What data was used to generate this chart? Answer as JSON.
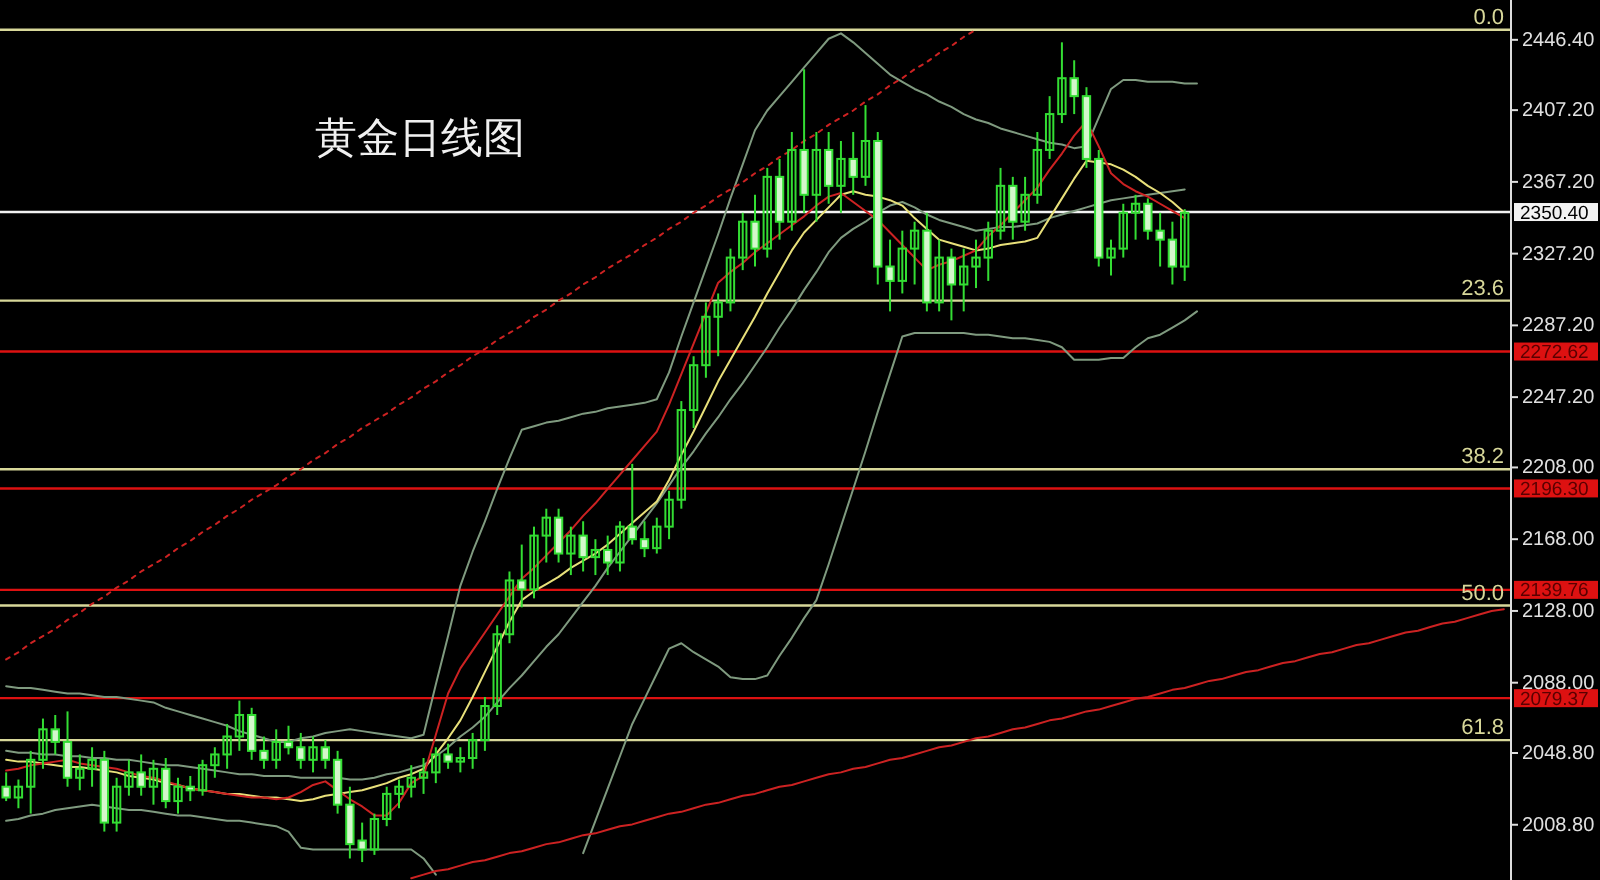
{
  "chart_data": {
    "type": "candlestick",
    "title": "黄金日线图",
    "ylim": [
      1978,
      2468.6
    ],
    "tick_labels": "y",
    "grid": false,
    "categories": [
      null,
      null,
      null,
      null,
      null,
      null,
      null,
      null,
      null,
      null,
      null,
      null,
      null,
      null,
      null,
      null,
      null,
      null,
      null,
      null,
      null,
      null,
      null,
      null,
      null,
      null,
      null,
      null,
      null,
      null,
      null,
      null,
      null,
      null,
      null,
      null,
      null,
      null,
      null,
      null,
      null,
      null,
      null,
      null,
      null,
      null,
      null,
      null,
      null,
      null,
      null,
      null,
      null,
      null,
      null,
      null,
      null,
      null,
      null,
      null,
      null,
      null,
      null,
      null,
      null,
      null,
      null,
      null,
      null,
      null,
      null,
      null,
      null,
      null,
      null,
      null,
      null,
      null,
      null,
      null,
      null,
      null,
      null,
      null,
      null,
      null,
      null,
      null,
      null,
      null,
      null,
      null,
      null,
      null,
      null,
      null,
      null,
      null,
      null,
      null,
      null,
      null,
      null,
      null,
      null,
      null,
      null,
      null,
      null,
      null,
      null,
      null,
      null,
      null,
      null,
      null,
      null,
      null,
      null,
      null,
      null,
      null,
      null
    ],
    "yticks": [
      {
        "value": 2446.4,
        "label": "2446.40"
      },
      {
        "value": 2407.2,
        "label": "2407.20"
      },
      {
        "value": 2367.2,
        "label": "2367.20"
      },
      {
        "value": 2327.2,
        "label": "2327.20"
      },
      {
        "value": 2287.2,
        "label": "2287.20"
      },
      {
        "value": 2247.2,
        "label": "2247.20"
      },
      {
        "value": 2208,
        "label": "2208.00"
      },
      {
        "value": 2168,
        "label": "2168.00"
      },
      {
        "value": 2128,
        "label": "2128.00"
      },
      {
        "value": 2088,
        "label": "2088.00"
      },
      {
        "value": 2048.8,
        "label": "2048.80"
      },
      {
        "value": 2008.8,
        "label": "2008.80"
      }
    ],
    "ref_lines": [
      {
        "axis": "y",
        "value": 2452,
        "color": "#d8d89a"
      },
      {
        "axis": "y",
        "value": 2301,
        "color": "#d8d89a"
      },
      {
        "axis": "y",
        "value": 2207,
        "color": "#d8d89a"
      },
      {
        "axis": "y",
        "value": 2131,
        "color": "#d8d89a"
      },
      {
        "axis": "y",
        "value": 2056,
        "color": "#d8d89a"
      },
      {
        "axis": "y",
        "value": 2350.4,
        "label": "2350.40",
        "color": "#f2f2f2"
      },
      {
        "axis": "y",
        "value": 2272.62,
        "label": "2272.62",
        "color": "#dd1111"
      },
      {
        "axis": "y",
        "value": 2196.3,
        "label": "2196.30",
        "color": "#dd1111"
      },
      {
        "axis": "y",
        "value": 2139.76,
        "label": "2139.76",
        "color": "#dd1111"
      },
      {
        "axis": "y",
        "value": 2079.37,
        "label": "2079.37",
        "color": "#dd1111"
      }
    ],
    "annotations": [
      {
        "text": "0.0",
        "y": 2452
      },
      {
        "text": "23.6",
        "y": 2301
      },
      {
        "text": "38.2",
        "y": 2207
      },
      {
        "text": "50.0",
        "y": 2131
      },
      {
        "text": "61.8",
        "y": 2056
      }
    ],
    "series": [
      {
        "color": "#33dd33",
        "ohlc": [
          [
            2030,
            2038,
            2022,
            2024
          ],
          [
            2024,
            2034,
            2018,
            2030
          ],
          [
            2030,
            2050,
            2015,
            2045
          ],
          [
            2045,
            2068,
            2040,
            2062
          ],
          [
            2062,
            2070,
            2048,
            2055
          ],
          [
            2055,
            2072,
            2030,
            2035
          ],
          [
            2035,
            2048,
            2028,
            2040
          ],
          [
            2040,
            2052,
            2030,
            2045
          ],
          [
            2045,
            2050,
            2005,
            2010
          ],
          [
            2010,
            2035,
            2005,
            2030
          ],
          [
            2030,
            2045,
            2025,
            2038
          ],
          [
            2038,
            2048,
            2025,
            2030
          ],
          [
            2030,
            2045,
            2020,
            2040
          ],
          [
            2040,
            2046,
            2018,
            2022
          ],
          [
            2022,
            2035,
            2015,
            2030
          ],
          [
            2030,
            2036,
            2022,
            2028
          ],
          [
            2028,
            2045,
            2025,
            2042
          ],
          [
            2042,
            2052,
            2035,
            2048
          ],
          [
            2048,
            2065,
            2040,
            2058
          ],
          [
            2058,
            2078,
            2050,
            2070
          ],
          [
            2070,
            2074,
            2045,
            2050
          ],
          [
            2050,
            2058,
            2040,
            2045
          ],
          [
            2045,
            2062,
            2040,
            2055
          ],
          [
            2055,
            2064,
            2048,
            2052
          ],
          [
            2052,
            2060,
            2040,
            2045
          ],
          [
            2045,
            2058,
            2038,
            2052
          ],
          [
            2052,
            2056,
            2040,
            2045
          ],
          [
            2045,
            2050,
            2015,
            2020
          ],
          [
            2020,
            2030,
            1990,
            1998
          ],
          [
            2000,
            2010,
            1988,
            1995
          ],
          [
            1995,
            2015,
            1992,
            2012
          ],
          [
            2012,
            2030,
            2008,
            2026
          ],
          [
            2026,
            2034,
            2018,
            2030
          ],
          [
            2030,
            2042,
            2024,
            2035
          ],
          [
            2035,
            2046,
            2026,
            2038
          ],
          [
            2038,
            2052,
            2032,
            2048
          ],
          [
            2048,
            2054,
            2040,
            2044
          ],
          [
            2044,
            2052,
            2038,
            2046
          ],
          [
            2046,
            2060,
            2040,
            2056
          ],
          [
            2056,
            2080,
            2050,
            2075
          ],
          [
            2075,
            2120,
            2070,
            2115
          ],
          [
            2115,
            2150,
            2110,
            2145
          ],
          [
            2145,
            2165,
            2130,
            2140
          ],
          [
            2140,
            2175,
            2135,
            2170
          ],
          [
            2170,
            2185,
            2155,
            2180
          ],
          [
            2180,
            2185,
            2155,
            2160
          ],
          [
            2160,
            2175,
            2148,
            2170
          ],
          [
            2170,
            2178,
            2150,
            2158
          ],
          [
            2158,
            2168,
            2148,
            2162
          ],
          [
            2162,
            2170,
            2148,
            2155
          ],
          [
            2155,
            2178,
            2150,
            2175
          ],
          [
            2175,
            2210,
            2165,
            2168
          ],
          [
            2168,
            2178,
            2158,
            2163
          ],
          [
            2163,
            2180,
            2160,
            2175
          ],
          [
            2175,
            2195,
            2168,
            2190
          ],
          [
            2190,
            2245,
            2185,
            2240
          ],
          [
            2240,
            2270,
            2230,
            2265
          ],
          [
            2265,
            2300,
            2258,
            2292
          ],
          [
            2292,
            2305,
            2270,
            2300
          ],
          [
            2300,
            2330,
            2295,
            2325
          ],
          [
            2325,
            2350,
            2318,
            2345
          ],
          [
            2345,
            2360,
            2320,
            2330
          ],
          [
            2330,
            2375,
            2325,
            2370
          ],
          [
            2370,
            2380,
            2335,
            2345
          ],
          [
            2345,
            2395,
            2340,
            2385
          ],
          [
            2385,
            2430,
            2350,
            2360
          ],
          [
            2360,
            2395,
            2345,
            2385
          ],
          [
            2385,
            2395,
            2355,
            2365
          ],
          [
            2365,
            2390,
            2350,
            2380
          ],
          [
            2380,
            2395,
            2360,
            2370
          ],
          [
            2370,
            2410,
            2365,
            2390
          ],
          [
            2390,
            2395,
            2310,
            2320
          ],
          [
            2320,
            2335,
            2295,
            2312
          ],
          [
            2312,
            2340,
            2305,
            2330
          ],
          [
            2330,
            2345,
            2310,
            2340
          ],
          [
            2340,
            2350,
            2295,
            2300
          ],
          [
            2300,
            2335,
            2295,
            2325
          ],
          [
            2325,
            2330,
            2290,
            2310
          ],
          [
            2310,
            2330,
            2295,
            2320
          ],
          [
            2320,
            2335,
            2308,
            2325
          ],
          [
            2325,
            2345,
            2312,
            2340
          ],
          [
            2340,
            2375,
            2335,
            2365
          ],
          [
            2365,
            2370,
            2335,
            2345
          ],
          [
            2345,
            2370,
            2340,
            2360
          ],
          [
            2360,
            2395,
            2355,
            2385
          ],
          [
            2385,
            2415,
            2380,
            2405
          ],
          [
            2405,
            2445,
            2400,
            2425
          ],
          [
            2425,
            2435,
            2405,
            2415
          ],
          [
            2415,
            2420,
            2375,
            2380
          ],
          [
            2380,
            2385,
            2320,
            2325
          ],
          [
            2325,
            2335,
            2315,
            2330
          ],
          [
            2330,
            2355,
            2325,
            2350
          ],
          [
            2350,
            2360,
            2335,
            2355
          ],
          [
            2355,
            2358,
            2335,
            2340
          ],
          [
            2340,
            2350,
            2320,
            2335
          ],
          [
            2335,
            2345,
            2310,
            2320
          ],
          [
            2320,
            2352,
            2312,
            2350
          ],
          null,
          null,
          null,
          null,
          null,
          null,
          null,
          null,
          null,
          null,
          null,
          null,
          null,
          null,
          null,
          null,
          null,
          null,
          null,
          null,
          null,
          null,
          null,
          null,
          null,
          null
        ]
      },
      {
        "type": "line",
        "color": "#7f9a7f",
        "values": [
          2086,
          2085,
          2085,
          2084,
          2083,
          2082,
          2082,
          2081,
          2080,
          2080,
          2079,
          2078,
          2077,
          2074,
          2072,
          2070,
          2068,
          2066,
          2064,
          2061,
          2059,
          2057,
          2055,
          2055,
          2057,
          2058,
          2060,
          2061,
          2062,
          2061,
          2060,
          2059,
          2058,
          2057,
          2059,
          2087,
          2114,
          2142,
          2161,
          2178,
          2196,
          2213,
          2229,
          2231,
          2233,
          2234,
          2236,
          2238,
          2239,
          2241,
          2242,
          2243,
          2244,
          2246,
          2261,
          2281,
          2300,
          2319,
          2338,
          2358,
          2377,
          2396,
          2407,
          2415,
          2423,
          2431,
          2439,
          2447,
          2450,
          2445,
          2439,
          2433,
          2427,
          2423,
          2419,
          2416,
          2412,
          2409,
          2405,
          2402,
          2400,
          2397,
          2395,
          2393,
          2391,
          2389,
          2388,
          2386,
          2387,
          2403,
          2419,
          2424,
          2424,
          2423,
          2423,
          2423,
          2422,
          2422,
          null,
          null,
          null,
          null,
          null,
          null,
          null,
          null,
          null,
          null,
          null,
          null,
          null,
          null,
          null,
          null,
          null,
          null,
          null,
          null,
          null,
          null,
          null,
          null,
          null
        ]
      },
      {
        "type": "line",
        "color": "#7f9a7f",
        "values": [
          2050,
          2049,
          2049,
          2048,
          2048,
          2047,
          2047,
          2046,
          2046,
          2045,
          2045,
          2044,
          2043,
          2042,
          2042,
          2041,
          2040,
          2039,
          2038,
          2037,
          2037,
          2036,
          2036,
          2036,
          2035,
          2035,
          2035,
          2035,
          2034,
          2034,
          2035,
          2037,
          2038,
          2040,
          2042,
          2047,
          2052,
          2058,
          2063,
          2069,
          2077,
          2085,
          2092,
          2100,
          2108,
          2115,
          2124,
          2133,
          2142,
          2152,
          2161,
          2170,
          2179,
          2188,
          2198,
          2208,
          2217,
          2227,
          2236,
          2246,
          2255,
          2265,
          2275,
          2286,
          2296,
          2307,
          2317,
          2328,
          2336,
          2341,
          2345,
          2350,
          2354,
          2356,
          2353,
          2349,
          2346,
          2344,
          2342,
          2340,
          2341,
          2342,
          2342,
          2343,
          2344,
          2347,
          2349,
          2351,
          2353,
          2355,
          2357,
          2358,
          2359,
          2360,
          2361,
          2362,
          2363,
          null,
          null,
          null,
          null,
          null,
          null,
          null,
          null,
          null,
          null,
          null,
          null,
          null,
          null,
          null,
          null,
          null,
          null,
          null,
          null,
          null,
          null,
          null,
          null,
          null,
          null
        ]
      },
      {
        "type": "line",
        "color": "#7f9a7f",
        "values": [
          2011,
          2012,
          2014,
          2015,
          2017,
          2018,
          2019,
          2020,
          2019,
          2018,
          2017,
          2017,
          2016,
          2015,
          2014,
          2014,
          2013,
          2012,
          2011,
          2011,
          2010,
          2009,
          2008,
          2005,
          1996,
          1995,
          1995,
          1995,
          1995,
          1995,
          1995,
          1995,
          1995,
          1995,
          1990,
          1981,
          null,
          null,
          null,
          null,
          null,
          null,
          null,
          null,
          null,
          null,
          null,
          1993,
          2011,
          2029,
          2047,
          2065,
          2079,
          2093,
          2107,
          2110,
          2105,
          2101,
          2097,
          2091,
          2090,
          2090,
          2092,
          2103,
          2113,
          2124,
          2134,
          2154,
          2175,
          2196,
          2217,
          2239,
          2260,
          2281,
          2283,
          2283,
          2283,
          2283,
          2283,
          2282,
          2282,
          2281,
          2280,
          2280,
          2279,
          2278,
          2275,
          2268,
          2268,
          2268,
          2269,
          2269,
          2275,
          2280,
          2282,
          2286,
          2290,
          2295,
          null,
          null,
          null,
          null,
          null,
          null,
          null,
          null,
          null,
          null,
          null,
          null,
          null,
          null,
          null,
          null,
          null,
          null,
          null,
          null,
          null,
          null,
          null,
          null,
          null
        ]
      },
      {
        "type": "line",
        "color": "#e8e07a",
        "values": [
          2045,
          2044,
          2044,
          2043,
          2042,
          2041,
          2041,
          2040,
          2039,
          2038,
          2036,
          2035,
          2034,
          2032,
          2031,
          2029,
          2028,
          2027,
          2026,
          2026,
          2025,
          2024,
          2024,
          2023,
          2022,
          2023,
          2025,
          2026,
          2027,
          2028,
          2030,
          2032,
          2035,
          2037,
          2040,
          2048,
          2057,
          2067,
          2080,
          2094,
          2108,
          2122,
          2134,
          2139,
          2143,
          2147,
          2152,
          2156,
          2160,
          2165,
          2171,
          2177,
          2183,
          2189,
          2201,
          2215,
          2228,
          2242,
          2256,
          2268,
          2280,
          2292,
          2305,
          2317,
          2329,
          2339,
          2346,
          2353,
          2360,
          2362,
          2360,
          2359,
          2357,
          2354,
          2347,
          2341,
          2335,
          2333,
          2331,
          2329,
          2330,
          2332,
          2333,
          2334,
          2336,
          2347,
          2358,
          2369,
          2379,
          2378,
          2377,
          2374,
          2370,
          2365,
          2361,
          2356,
          2350,
          null,
          null,
          null,
          null,
          null,
          null,
          null,
          null,
          null,
          null,
          null,
          null,
          null,
          null,
          null,
          null,
          null,
          null,
          null,
          null,
          null,
          null,
          null,
          null,
          null,
          null
        ]
      },
      {
        "type": "line",
        "color": "#cc2222",
        "values": [
          2039,
          2040,
          2042,
          2043,
          2044,
          2045,
          2043,
          2042,
          2041,
          2040,
          2038,
          2036,
          2035,
          2033,
          2031,
          2029,
          2028,
          2027,
          2026,
          2025,
          2024,
          2024,
          2023,
          2024,
          2027,
          2031,
          2033,
          2028,
          2023,
          2019,
          2014,
          2014,
          2021,
          2032,
          2036,
          2059,
          2082,
          2096,
          2106,
          2116,
          2126,
          2136,
          2146,
          2152,
          2159,
          2166,
          2173,
          2181,
          2188,
          2196,
          2204,
          2212,
          2220,
          2228,
          2243,
          2260,
          2277,
          2294,
          2311,
          2317,
          2322,
          2328,
          2333,
          2338,
          2343,
          2348,
          2354,
          2359,
          2361,
          2356,
          2351,
          2346,
          2339,
          2332,
          2325,
          2318,
          2321,
          2323,
          2326,
          2329,
          2337,
          2343,
          2350,
          2357,
          2364,
          2374,
          2383,
          2393,
          2401,
          2387,
          2372,
          2366,
          2362,
          2359,
          2355,
          2351,
          2347,
          null,
          null,
          null,
          null,
          null,
          null,
          null,
          null,
          null,
          null,
          null,
          null,
          null,
          null,
          null,
          null,
          null,
          null,
          null,
          null,
          null,
          null,
          null,
          null,
          null,
          null
        ]
      },
      {
        "type": "line",
        "color": "#cc2222",
        "line_style": "dotted",
        "values": [
          2101,
          2105,
          2110,
          2114,
          2118,
          2123,
          2127,
          2132,
          2136,
          2141,
          2145,
          2150,
          2154,
          2158,
          2163,
          2167,
          2172,
          2176,
          2181,
          2185,
          2190,
          2194,
          2198,
          2203,
          2207,
          2212,
          2216,
          2221,
          2225,
          2230,
          2234,
          2238,
          2243,
          2247,
          2252,
          2256,
          2261,
          2265,
          2270,
          2274,
          2279,
          2283,
          2287,
          2292,
          2296,
          2301,
          2305,
          2310,
          2314,
          2319,
          2323,
          2327,
          2332,
          2336,
          2341,
          2345,
          2350,
          2354,
          2359,
          2363,
          2367,
          2372,
          2376,
          2381,
          2385,
          2390,
          2394,
          2399,
          2403,
          2407,
          2412,
          2416,
          2421,
          2425,
          2430,
          2434,
          2439,
          2443,
          2448,
          2452,
          null,
          null,
          null,
          null,
          null,
          null,
          null,
          null,
          null,
          null,
          null,
          null,
          null,
          null,
          null,
          null,
          null,
          null,
          null,
          null,
          null,
          null,
          null,
          null,
          null,
          null,
          null,
          null,
          null,
          null,
          null,
          null,
          null,
          null,
          null,
          null,
          null,
          null,
          null,
          null,
          null,
          null,
          null
        ]
      },
      {
        "type": "line",
        "color": "#cc2222",
        "values": [
          null,
          null,
          null,
          null,
          null,
          null,
          null,
          null,
          null,
          null,
          null,
          null,
          null,
          null,
          null,
          null,
          null,
          null,
          null,
          null,
          null,
          null,
          null,
          null,
          null,
          null,
          null,
          null,
          null,
          null,
          null,
          null,
          null,
          1979,
          1981,
          1983,
          1984,
          1986,
          1988,
          1989,
          1991,
          1993,
          1994,
          1996,
          1998,
          1999,
          2001,
          2003,
          2004,
          2006,
          2008,
          2009,
          2011,
          2013,
          2015,
          2016,
          2018,
          2020,
          2021,
          2023,
          2025,
          2026,
          2028,
          2030,
          2031,
          2033,
          2035,
          2037,
          2038,
          2040,
          2041,
          2043,
          2045,
          2046,
          2048,
          2050,
          2052,
          2053,
          2055,
          2057,
          2058,
          2060,
          2062,
          2063,
          2065,
          2067,
          2068,
          2070,
          2072,
          2073,
          2075,
          2077,
          2079,
          2080,
          2082,
          2084,
          2085,
          2087,
          2089,
          2090,
          2092,
          2094,
          2095,
          2097,
          2099,
          2100,
          2102,
          2104,
          2105,
          2107,
          2109,
          2110,
          2112,
          2114,
          2116,
          2117,
          2119,
          2121,
          2122,
          2124,
          2126,
          2128,
          2129
        ]
      }
    ]
  }
}
